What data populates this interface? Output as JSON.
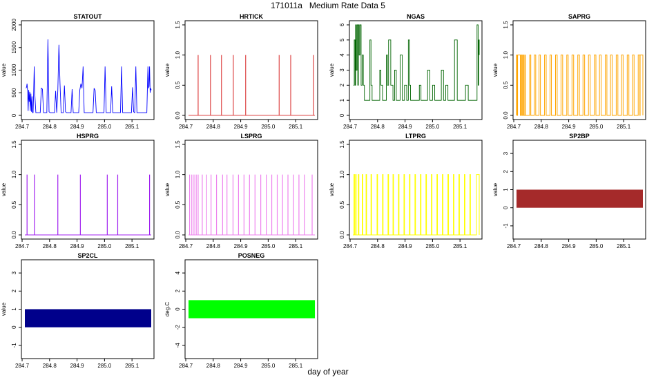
{
  "figure": {
    "title": "171011a   Medium Rate Data 5",
    "xlabel": "day of year"
  },
  "chart_data": [
    {
      "type": "line",
      "title": "STATOUT",
      "ylabel": "value",
      "color": "#0000ff",
      "xlim": [
        284.71,
        285.17
      ],
      "ylim": [
        0,
        2000
      ],
      "xticks": [
        284.7,
        284.8,
        284.9,
        285.0,
        285.1
      ],
      "yticks": [
        0,
        500,
        1000,
        1500,
        2000
      ],
      "x": [
        284.714,
        284.716,
        284.718,
        284.72,
        284.722,
        284.724,
        284.726,
        284.728,
        284.73,
        284.732,
        284.734,
        284.736,
        284.738,
        284.74,
        284.742,
        284.744,
        284.746,
        284.75,
        284.754,
        284.758,
        284.762,
        284.766,
        284.77,
        284.774,
        284.778,
        284.782,
        284.786,
        284.79,
        284.794,
        284.798,
        284.802,
        284.806,
        284.81,
        284.814,
        284.818,
        284.822,
        284.826,
        284.83,
        284.834,
        284.838,
        284.842,
        284.846,
        284.85,
        284.854,
        284.858,
        284.862,
        284.866,
        284.87,
        284.874,
        284.878,
        284.882,
        284.886,
        284.89,
        284.894,
        284.898,
        284.902,
        284.906,
        284.91,
        284.914,
        284.918,
        284.922,
        284.926,
        284.93,
        284.934,
        284.938,
        284.942,
        284.946,
        284.95,
        284.954,
        284.958,
        284.962,
        284.966,
        284.97,
        284.974,
        284.978,
        284.982,
        284.986,
        284.99,
        284.994,
        284.998,
        285.002,
        285.006,
        285.01,
        285.014,
        285.018,
        285.022,
        285.026,
        285.03,
        285.034,
        285.038,
        285.042,
        285.046,
        285.05,
        285.054,
        285.058,
        285.062,
        285.066,
        285.07,
        285.074,
        285.078,
        285.082,
        285.086,
        285.09,
        285.094,
        285.098,
        285.102,
        285.106,
        285.11,
        285.114,
        285.118,
        285.122,
        285.126,
        285.13,
        285.134,
        285.138,
        285.142,
        285.146,
        285.15,
        285.154,
        285.158,
        285.16,
        285.162,
        285.164,
        285.166,
        285.168,
        285.17
      ],
      "y": [
        600,
        620,
        700,
        550,
        100,
        560,
        300,
        520,
        100,
        480,
        80,
        420,
        60,
        60,
        500,
        1080,
        500,
        60,
        60,
        60,
        60,
        60,
        600,
        580,
        60,
        60,
        60,
        60,
        1680,
        80,
        60,
        60,
        60,
        60,
        60,
        540,
        60,
        560,
        1560,
        700,
        60,
        60,
        60,
        660,
        80,
        60,
        60,
        60,
        60,
        60,
        580,
        60,
        60,
        60,
        60,
        60,
        60,
        560,
        700,
        600,
        1080,
        60,
        60,
        60,
        60,
        60,
        60,
        60,
        60,
        60,
        600,
        550,
        60,
        60,
        60,
        60,
        60,
        60,
        60,
        60,
        1080,
        60,
        60,
        60,
        60,
        60,
        640,
        60,
        60,
        60,
        60,
        60,
        60,
        60,
        60,
        1080,
        60,
        60,
        60,
        60,
        60,
        60,
        60,
        60,
        60,
        620,
        80,
        60,
        1080,
        60,
        60,
        60,
        60,
        60,
        60,
        60,
        60,
        60,
        60,
        1080,
        600,
        640,
        1080,
        500,
        600,
        560
      ]
    },
    {
      "type": "line",
      "title": "HRTICK",
      "ylabel": "value",
      "color": "#dd4444",
      "xlim": [
        284.71,
        285.17
      ],
      "ylim": [
        0,
        1.5
      ],
      "xticks": [
        284.7,
        284.8,
        284.9,
        285.0,
        285.1
      ],
      "yticks": [
        0.0,
        0.5,
        1.0,
        1.5
      ],
      "spikes": [
        284.745,
        284.79,
        284.83,
        284.873,
        284.918,
        285.04,
        285.082,
        285.165
      ]
    },
    {
      "type": "line",
      "title": "NGAS",
      "ylabel": "value",
      "color": "#006400",
      "xlim": [
        284.71,
        285.17
      ],
      "ylim": [
        0,
        6
      ],
      "xticks": [
        284.7,
        284.8,
        284.9,
        285.0,
        285.1
      ],
      "yticks": [
        0,
        1,
        2,
        3,
        4,
        5,
        6
      ],
      "x": [
        284.712,
        284.715,
        284.718,
        284.72,
        284.722,
        284.725,
        284.728,
        284.73,
        284.733,
        284.736,
        284.74,
        284.744,
        284.748,
        284.752,
        284.756,
        284.76,
        284.766,
        284.772,
        284.776,
        284.78,
        284.786,
        284.792,
        284.798,
        284.804,
        284.808,
        284.812,
        284.818,
        284.826,
        284.832,
        284.836,
        284.84,
        284.848,
        284.856,
        284.862,
        284.868,
        284.874,
        284.882,
        284.89,
        284.898,
        284.906,
        284.912,
        284.916,
        284.92,
        284.928,
        284.936,
        284.944,
        284.952,
        284.958,
        284.966,
        284.974,
        284.982,
        284.99,
        285.0,
        285.008,
        285.016,
        285.024,
        285.032,
        285.04,
        285.048,
        285.056,
        285.064,
        285.072,
        285.08,
        285.09,
        285.1,
        285.11,
        285.12,
        285.13,
        285.14,
        285.15,
        285.158,
        285.162,
        285.164,
        285.166,
        285.168,
        285.17
      ],
      "y": [
        2,
        5,
        2,
        6,
        3,
        6,
        2,
        6,
        4,
        6,
        2,
        4,
        2,
        1,
        1,
        1,
        1,
        5,
        2,
        1,
        1,
        1,
        1,
        1,
        3,
        2,
        1,
        1,
        4,
        2,
        5,
        2,
        1,
        3,
        1,
        1,
        4,
        1,
        2,
        1,
        5,
        2,
        1,
        1,
        1,
        1,
        2,
        1,
        1,
        1,
        3,
        1,
        2,
        1,
        1,
        1,
        3,
        1,
        2,
        1,
        1,
        1,
        5,
        1,
        1,
        1,
        2,
        1,
        1,
        1,
        1,
        6,
        6,
        2,
        5,
        4
      ]
    },
    {
      "type": "line",
      "title": "SAPRG",
      "ylabel": "value",
      "color": "#ffa500",
      "xlim": [
        284.71,
        285.17
      ],
      "ylim": [
        0,
        1.5
      ],
      "xticks": [
        284.7,
        284.8,
        284.9,
        285.0,
        285.1
      ],
      "yticks": [
        0.0,
        0.5,
        1.0,
        1.5
      ],
      "pulses": [
        [
          284.71,
          284.712
        ],
        [
          284.714,
          284.724
        ],
        [
          284.727,
          284.73
        ],
        [
          284.733,
          284.736
        ],
        [
          284.74,
          284.742
        ],
        [
          284.758,
          284.762
        ],
        [
          284.775,
          284.78
        ],
        [
          284.792,
          284.797
        ],
        [
          284.812,
          284.818
        ],
        [
          284.832,
          284.837
        ],
        [
          284.852,
          284.858
        ],
        [
          284.872,
          284.878
        ],
        [
          284.893,
          284.898
        ],
        [
          284.912,
          284.918
        ],
        [
          284.933,
          284.939
        ],
        [
          284.952,
          284.958
        ],
        [
          284.972,
          284.978
        ],
        [
          284.993,
          284.999
        ],
        [
          285.012,
          285.018
        ],
        [
          285.033,
          285.039
        ],
        [
          285.052,
          285.058
        ],
        [
          285.073,
          285.079
        ],
        [
          285.092,
          285.098
        ],
        [
          285.113,
          285.119
        ],
        [
          285.132,
          285.138
        ],
        [
          285.153,
          285.159
        ],
        [
          285.16,
          285.17
        ]
      ]
    },
    {
      "type": "line",
      "title": "HSPRG",
      "ylabel": "value",
      "color": "#a020f0",
      "xlim": [
        284.71,
        285.17
      ],
      "ylim": [
        0,
        1.5
      ],
      "xticks": [
        284.7,
        284.8,
        284.9,
        285.0,
        285.1
      ],
      "yticks": [
        0.0,
        0.5,
        1.0,
        1.5
      ],
      "spikes": [
        284.718,
        284.745,
        284.83,
        284.912,
        285.01,
        285.048,
        285.164
      ]
    },
    {
      "type": "line",
      "title": "LSPRG",
      "ylabel": "value",
      "color": "#ee82ee",
      "xlim": [
        284.71,
        285.17
      ],
      "ylim": [
        0,
        1.5
      ],
      "xticks": [
        284.7,
        284.8,
        284.9,
        285.0,
        285.1
      ],
      "yticks": [
        0.0,
        0.5,
        1.0,
        1.5
      ],
      "spikes": [
        284.714,
        284.722,
        284.73,
        284.738,
        284.745,
        284.76,
        284.776,
        284.792,
        284.812,
        284.834,
        284.85,
        284.872,
        284.892,
        284.912,
        284.932,
        284.952,
        284.973,
        284.993,
        285.013,
        285.033,
        285.052,
        285.072,
        285.092,
        285.112,
        285.132,
        285.16
      ]
    },
    {
      "type": "line",
      "title": "LTPRG",
      "ylabel": "value",
      "color": "#ffff00",
      "xlim": [
        284.71,
        285.17
      ],
      "ylim": [
        0,
        1.5
      ],
      "xticks": [
        284.7,
        284.8,
        284.9,
        285.0,
        285.1
      ],
      "yticks": [
        0.0,
        0.5,
        1.0,
        1.5
      ],
      "pulses": [
        [
          284.714,
          284.716
        ],
        [
          284.72,
          284.722
        ],
        [
          284.73,
          284.732
        ],
        [
          284.744,
          284.746
        ],
        [
          284.758,
          284.76
        ],
        [
          284.776,
          284.778
        ],
        [
          284.798,
          284.8
        ],
        [
          284.818,
          284.82
        ],
        [
          284.838,
          284.84
        ],
        [
          284.856,
          284.858
        ],
        [
          284.876,
          284.878
        ],
        [
          284.896,
          284.898
        ],
        [
          284.916,
          284.918
        ],
        [
          284.936,
          284.938
        ],
        [
          284.956,
          284.958
        ],
        [
          284.976,
          284.978
        ],
        [
          284.996,
          284.998
        ],
        [
          285.016,
          285.018
        ],
        [
          285.036,
          285.038
        ],
        [
          285.056,
          285.058
        ],
        [
          285.076,
          285.078
        ],
        [
          285.096,
          285.098
        ],
        [
          285.116,
          285.118
        ],
        [
          285.136,
          285.138
        ],
        [
          285.16,
          285.17
        ]
      ]
    },
    {
      "type": "area",
      "title": "SP2BP",
      "ylabel": "value",
      "color": "#a52a2a",
      "xlim": [
        284.71,
        285.17
      ],
      "ylim": [
        -1.5,
        3.5
      ],
      "xticks": [
        284.7,
        284.8,
        284.9,
        285.0,
        285.1
      ],
      "yticks": [
        -1,
        0,
        1,
        2,
        3
      ],
      "band": {
        "x": [
          284.71,
          285.17
        ],
        "y": [
          0,
          1
        ]
      }
    },
    {
      "type": "area",
      "title": "SP2CL",
      "ylabel": "value",
      "color": "#00008b",
      "xlim": [
        284.71,
        285.17
      ],
      "ylim": [
        -1.5,
        3.5
      ],
      "xticks": [
        284.7,
        284.8,
        284.9,
        285.0,
        285.1
      ],
      "yticks": [
        -1,
        0,
        1,
        2,
        3
      ],
      "band": {
        "x": [
          284.71,
          285.17
        ],
        "y": [
          0,
          1
        ]
      }
    },
    {
      "type": "area",
      "title": "POSNEG",
      "ylabel": "deg.C",
      "color": "#00ff00",
      "xlim": [
        284.71,
        285.17
      ],
      "ylim": [
        -5,
        5
      ],
      "xticks": [
        284.7,
        284.8,
        284.9,
        285.0,
        285.1
      ],
      "yticks": [
        -4,
        -2,
        0,
        2,
        4
      ],
      "band": {
        "x": [
          284.71,
          285.17
        ],
        "y": [
          -1,
          1
        ]
      }
    }
  ]
}
